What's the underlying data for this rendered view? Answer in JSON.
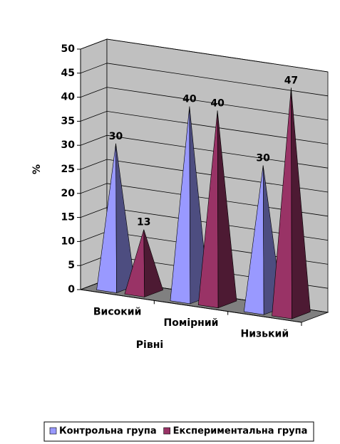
{
  "chart_data": {
    "type": "pyramid3d",
    "categories": [
      "Високий",
      "Помірний",
      "Низький"
    ],
    "series": [
      {
        "name": "Контрольна група",
        "color": "#9999ff",
        "values": [
          30,
          40,
          30
        ]
      },
      {
        "name": "Експериментальна група",
        "color": "#993366",
        "values": [
          13,
          40,
          47
        ]
      }
    ],
    "ylabel": "%",
    "xlabel": "Рівні",
    "ylim": [
      0,
      50
    ],
    "yticks": [
      0,
      5,
      10,
      15,
      20,
      25,
      30,
      35,
      40,
      45,
      50
    ],
    "grid": true,
    "legend": "bottom"
  }
}
